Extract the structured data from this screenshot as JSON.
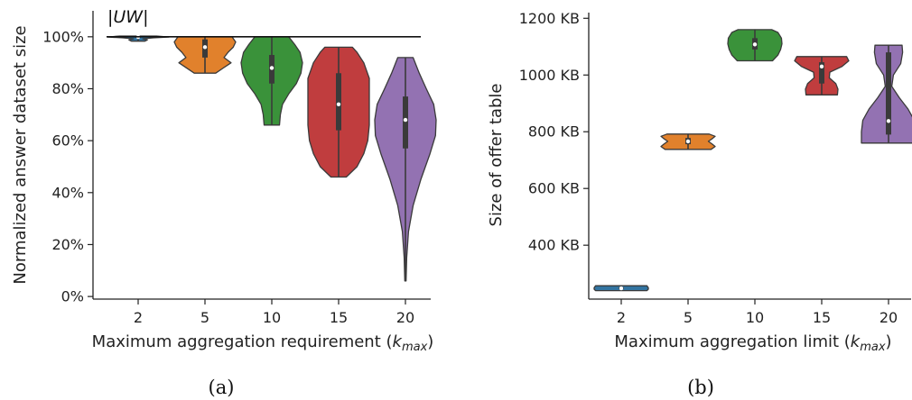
{
  "chart_data": [
    {
      "type": "violin",
      "caption": "(a)",
      "categories": [
        "2",
        "5",
        "10",
        "15",
        "20"
      ],
      "ylabel": "Normalized answer dataset size",
      "xlabel_main": "Maximum aggregation requirement (",
      "xlabel_var": "k",
      "xlabel_sub": "max",
      "xlabel_close": ")",
      "ylim": [
        -1,
        110
      ],
      "yticks": [
        0,
        20,
        40,
        60,
        80,
        100
      ],
      "ytick_labels": [
        "0%",
        "20%",
        "40%",
        "60%",
        "80%",
        "100%"
      ],
      "reference_line": {
        "label": "|UW|",
        "value": 100
      },
      "colors": [
        "#3274a1",
        "#e1812c",
        "#3a923a",
        "#c03d3e",
        "#9372b2"
      ],
      "violins": [
        {
          "min": 98.3,
          "max": 100.3,
          "median": 99.9,
          "q1": 99.6,
          "q3": 100,
          "profile": [
            [
              98.3,
              0.22
            ],
            [
              98.8,
              0.3
            ],
            [
              99.2,
              0.15
            ],
            [
              99.6,
              0.5
            ],
            [
              99.9,
              1.0
            ],
            [
              100.3,
              0.6
            ]
          ]
        },
        {
          "min": 86,
          "max": 100,
          "median": 96,
          "q1": 92,
          "q3": 99,
          "profile": [
            [
              86,
              0.35
            ],
            [
              88,
              0.6
            ],
            [
              90,
              0.85
            ],
            [
              92,
              0.62
            ],
            [
              94,
              0.75
            ],
            [
              96,
              0.92
            ],
            [
              98,
              1.0
            ],
            [
              100,
              0.88
            ]
          ]
        },
        {
          "min": 66,
          "max": 100,
          "median": 88,
          "q1": 82,
          "q3": 93,
          "profile": [
            [
              66,
              0.25
            ],
            [
              70,
              0.28
            ],
            [
              74,
              0.35
            ],
            [
              78,
              0.55
            ],
            [
              82,
              0.8
            ],
            [
              86,
              0.95
            ],
            [
              90,
              1.0
            ],
            [
              94,
              0.92
            ],
            [
              97,
              0.75
            ],
            [
              100,
              0.55
            ]
          ]
        },
        {
          "min": 46,
          "max": 96,
          "median": 74,
          "q1": 64,
          "q3": 86,
          "profile": [
            [
              46,
              0.25
            ],
            [
              50,
              0.6
            ],
            [
              55,
              0.82
            ],
            [
              60,
              0.95
            ],
            [
              66,
              1.0
            ],
            [
              72,
              1.0
            ],
            [
              78,
              1.0
            ],
            [
              84,
              1.0
            ],
            [
              90,
              0.82
            ],
            [
              94,
              0.6
            ],
            [
              96,
              0.45
            ]
          ]
        },
        {
          "min": 6,
          "max": 92,
          "median": 68,
          "q1": 57,
          "q3": 77,
          "profile": [
            [
              6,
              0.02
            ],
            [
              15,
              0.04
            ],
            [
              25,
              0.1
            ],
            [
              35,
              0.25
            ],
            [
              45,
              0.5
            ],
            [
              55,
              0.8
            ],
            [
              62,
              0.98
            ],
            [
              68,
              1.0
            ],
            [
              74,
              0.92
            ],
            [
              80,
              0.68
            ],
            [
              86,
              0.45
            ],
            [
              92,
              0.25
            ]
          ]
        }
      ]
    },
    {
      "type": "violin",
      "caption": "(b)",
      "categories": [
        "2",
        "5",
        "10",
        "15",
        "20"
      ],
      "ylabel": "Size of offer table",
      "xlabel_main": "Maximum aggregation limit (",
      "xlabel_var": "k",
      "xlabel_sub": "max",
      "xlabel_close": ")",
      "ylim": [
        210,
        1220
      ],
      "yticks": [
        400,
        600,
        800,
        1000,
        1200
      ],
      "ytick_labels": [
        "400 KB",
        "600 KB",
        "800 KB",
        "1000 KB",
        "1200 KB"
      ],
      "colors": [
        "#3274a1",
        "#e1812c",
        "#3a923a",
        "#c03d3e",
        "#9372b2"
      ],
      "violins": [
        {
          "min": 240,
          "max": 257,
          "median": 248,
          "q1": 246,
          "q3": 251,
          "profile": [
            [
              240,
              0.95
            ],
            [
              245,
              1.0
            ],
            [
              250,
              1.0
            ],
            [
              257,
              0.95
            ]
          ]
        },
        {
          "min": 738,
          "max": 792,
          "median": 766,
          "q1": 756,
          "q3": 778,
          "profile": [
            [
              738,
              0.85
            ],
            [
              748,
              1.0
            ],
            [
              756,
              0.9
            ],
            [
              766,
              0.75
            ],
            [
              776,
              0.9
            ],
            [
              784,
              1.0
            ],
            [
              792,
              0.78
            ]
          ]
        },
        {
          "min": 1050,
          "max": 1160,
          "median": 1108,
          "q1": 1090,
          "q3": 1130,
          "profile": [
            [
              1050,
              0.65
            ],
            [
              1070,
              0.85
            ],
            [
              1090,
              0.95
            ],
            [
              1110,
              1.0
            ],
            [
              1130,
              0.98
            ],
            [
              1150,
              0.85
            ],
            [
              1160,
              0.62
            ]
          ]
        },
        {
          "min": 930,
          "max": 1065,
          "median": 1030,
          "q1": 970,
          "q3": 1045,
          "profile": [
            [
              930,
              0.58
            ],
            [
              950,
              0.6
            ],
            [
              970,
              0.52
            ],
            [
              990,
              0.28
            ],
            [
              1010,
              0.3
            ],
            [
              1030,
              0.75
            ],
            [
              1050,
              1.0
            ],
            [
              1065,
              0.92
            ]
          ]
        },
        {
          "min": 760,
          "max": 1105,
          "median": 838,
          "q1": 790,
          "q3": 1080,
          "profile": [
            [
              760,
              1.0
            ],
            [
              800,
              1.0
            ],
            [
              840,
              0.95
            ],
            [
              880,
              0.72
            ],
            [
              920,
              0.4
            ],
            [
              960,
              0.12
            ],
            [
              1000,
              0.18
            ],
            [
              1040,
              0.45
            ],
            [
              1080,
              0.52
            ],
            [
              1105,
              0.5
            ]
          ]
        }
      ]
    }
  ]
}
